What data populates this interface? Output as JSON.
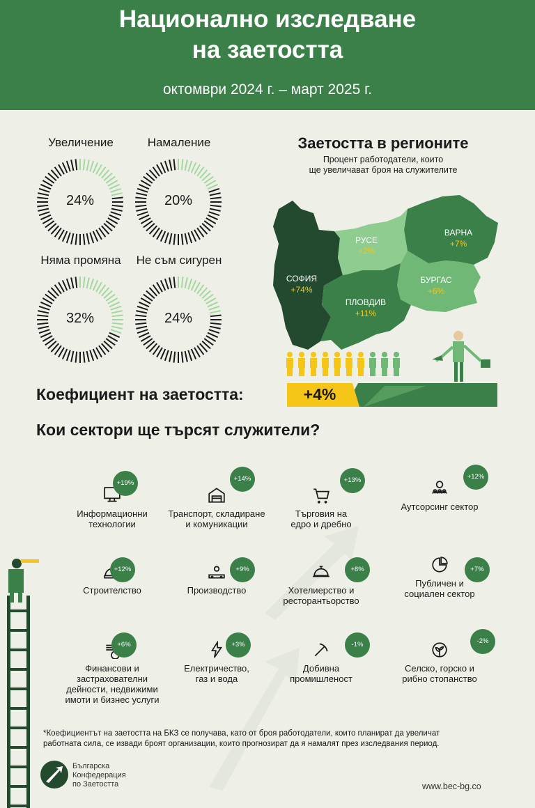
{
  "header": {
    "title_line1": "Национално изследване",
    "title_line2": "на заетостта",
    "period": "октомври 2024 г. – март 2025 г."
  },
  "outlook": [
    {
      "label": "Увеличение",
      "value": "24%",
      "fraction": 0.24
    },
    {
      "label": "Намаление",
      "value": "20%",
      "fraction": 0.2
    },
    {
      "label": "Няма промяна",
      "value": "32%",
      "fraction": 0.32
    },
    {
      "label": "Не съм сигурен",
      "value": "24%",
      "fraction": 0.24
    }
  ],
  "regions": {
    "title": "Заетостта в регионите",
    "subtitle_line1": "Процент работодатели, които",
    "subtitle_line2": "ще увеличават броя на служителите",
    "items": [
      {
        "name": "СОФИЯ",
        "value": "+74%"
      },
      {
        "name": "РУСЕ",
        "value": "+2%"
      },
      {
        "name": "ВАРНА",
        "value": "+7%"
      },
      {
        "name": "БУРГАС",
        "value": "+6%"
      },
      {
        "name": "ПЛОВДИВ",
        "value": "+11%"
      }
    ]
  },
  "coefficient": {
    "label": "Коефициент на заетостта:",
    "value": "+4%"
  },
  "sectors": {
    "title": "Кои сектори ще търсят служители?",
    "items": [
      {
        "icon": "monitor-icon",
        "line1": "Информационни",
        "line2": "технологии",
        "line3": "",
        "change": "+19%"
      },
      {
        "icon": "warehouse-icon",
        "line1": "Транспорт, складиране",
        "line2": "и комуникации",
        "line3": "",
        "change": "+14%"
      },
      {
        "icon": "cart-icon",
        "line1": "Търговия на",
        "line2": "едро и дребно",
        "line3": "",
        "change": "+13%"
      },
      {
        "icon": "people-gear-icon",
        "line1": "Аутсорсинг сектор",
        "line2": "",
        "line3": "",
        "change": "+12%"
      },
      {
        "icon": "helmet-icon",
        "line1": "Строителство",
        "line2": "",
        "line3": "",
        "change": "+12%"
      },
      {
        "icon": "conveyor-icon",
        "line1": "Производство",
        "line2": "",
        "line3": "",
        "change": "+9%"
      },
      {
        "icon": "cloche-icon",
        "line1": "Хотелиерство и",
        "line2": "ресторантьорство",
        "line3": "",
        "change": "+8%"
      },
      {
        "icon": "pie-icon",
        "line1": "Публичен и",
        "line2": "социален сектор",
        "line3": "",
        "change": "+7%"
      },
      {
        "icon": "coins-icon",
        "line1": "Финансови и",
        "line2": "застрахователни",
        "line3": "дейности, недвижими",
        "line4": "имоти и бизнес услуги",
        "change": "+6%"
      },
      {
        "icon": "lightning-icon",
        "line1": "Електричество,",
        "line2": "газ и вода",
        "line3": "",
        "change": "+3%"
      },
      {
        "icon": "pickaxe-icon",
        "line1": "Добивна",
        "line2": "промишленост",
        "line3": "",
        "change": "-1%"
      },
      {
        "icon": "plant-icon",
        "line1": "Селско, горско и",
        "line2": "рибно стопанство",
        "line3": "",
        "change": "-2%"
      }
    ]
  },
  "footnote_line1": "*Коефициентът на заетостта на БКЗ се получава, като от броя работодатели, които планират да увеличат",
  "footnote_line2": "работната сила, се извади броят организации, които прогнозират да я намалят през изследвания период.",
  "logo": {
    "line1": "Българска",
    "line2": "Конфедерация",
    "line3": "по Заетостта"
  },
  "website": "www.bec-bg.co",
  "colors": {
    "header": "#3b8048",
    "dark_green": "#234a2f",
    "mid_green": "#3b8048",
    "light_green": "#6fb876",
    "pale_green": "#8fcc8f",
    "accent_yellow": "#f5c518",
    "background": "#eef0e8"
  }
}
